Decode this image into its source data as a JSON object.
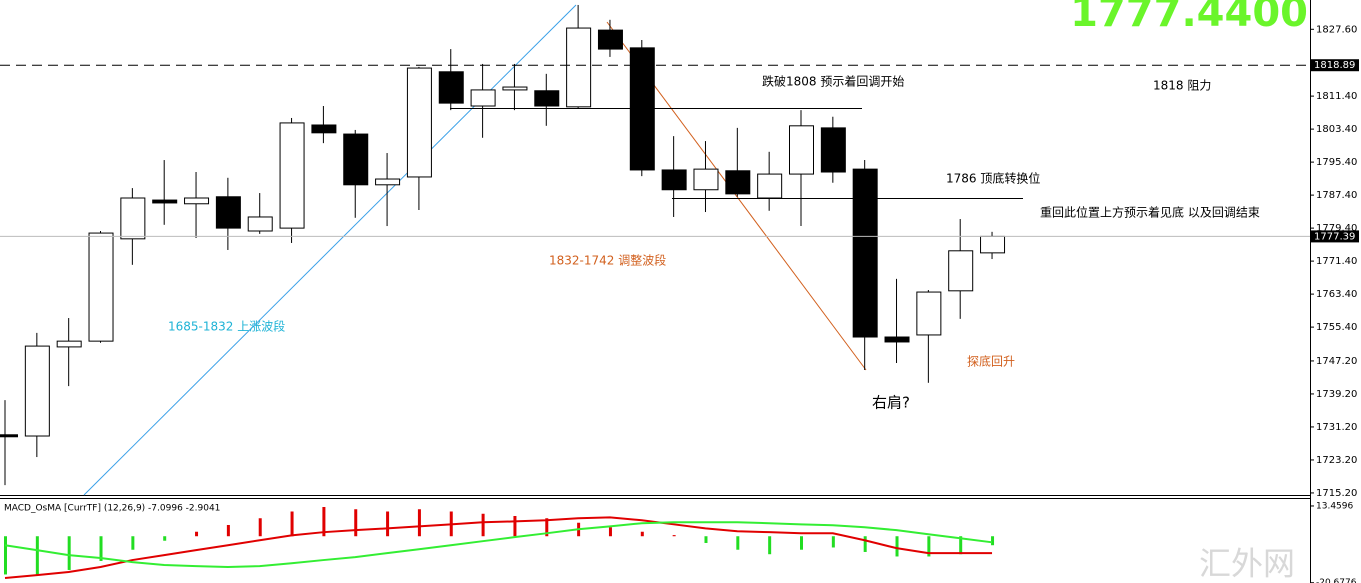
{
  "chart_data": [
    {
      "type": "candlestick",
      "categories": [
        null,
        null,
        null,
        null,
        null,
        null,
        null,
        null,
        null,
        null,
        null,
        null,
        null,
        null,
        null,
        null,
        null,
        null,
        null,
        null,
        null,
        null,
        null,
        null,
        null,
        null,
        null,
        null,
        null,
        null,
        null,
        null
      ],
      "open": [
        1729.3,
        1729.0,
        1750.6,
        1752.0,
        1776.8,
        1786.2,
        1785.3,
        1787.0,
        1778.7,
        1779.4,
        1804.4,
        1802.2,
        1789.9,
        1791.8,
        1817.3,
        1809.0,
        1812.9,
        1812.7,
        1808.8,
        1827.4,
        1823.1,
        1793.5,
        1788.7,
        1793.3,
        1786.7,
        1792.5,
        1803.7,
        1793.7,
        1753.0,
        1753.5,
        1764.2,
        1773.4
      ],
      "high": [
        1737.7,
        1754.0,
        1757.6,
        1778.7,
        1789.1,
        1795.9,
        1793.0,
        1791.6,
        1787.9,
        1806.1,
        1809.0,
        1803.2,
        1797.6,
        1818.5,
        1822.8,
        1819.2,
        1819.2,
        1816.8,
        1833.5,
        1829.9,
        1825.0,
        1801.7,
        1800.5,
        1803.7,
        1797.9,
        1808.0,
        1806.4,
        1795.9,
        1767.1,
        1764.4,
        1781.6,
        1778.5
      ],
      "low": [
        1717.1,
        1723.9,
        1741.1,
        1751.6,
        1770.5,
        1780.2,
        1777.0,
        1774.1,
        1778.0,
        1775.8,
        1800.0,
        1781.9,
        1779.9,
        1783.8,
        1808.0,
        1801.3,
        1808.0,
        1804.2,
        1808.5,
        1820.9,
        1792.0,
        1782.1,
        1783.3,
        1787.0,
        1783.6,
        1779.9,
        1790.4,
        1745.0,
        1746.7,
        1741.9,
        1757.4,
        1771.9
      ],
      "close": [
        1729.0,
        1750.8,
        1752.0,
        1778.2,
        1786.7,
        1785.5,
        1786.7,
        1779.4,
        1782.1,
        1804.9,
        1802.5,
        1789.9,
        1791.3,
        1818.2,
        1809.7,
        1812.9,
        1813.6,
        1809.0,
        1827.9,
        1822.8,
        1793.5,
        1788.7,
        1793.7,
        1787.7,
        1792.5,
        1804.2,
        1793.0,
        1753.0,
        1751.8,
        1763.9,
        1773.9,
        1777.39
      ],
      "up_color": "#ffffff",
      "down_color": "#000000",
      "ylim": [
        1714.7,
        1834.7
      ],
      "yticks": [
        {
          "value": 1827.6,
          "label": "1827.60"
        },
        {
          "value": 1811.4,
          "label": "1811.40"
        },
        {
          "value": 1803.4,
          "label": "1803.40"
        },
        {
          "value": 1795.4,
          "label": "1795.40"
        },
        {
          "value": 1787.4,
          "label": "1787.40"
        },
        {
          "value": 1779.4,
          "label": "1779.40"
        },
        {
          "value": 1771.4,
          "label": "1771.40"
        },
        {
          "value": 1763.4,
          "label": "1763.40"
        },
        {
          "value": 1755.4,
          "label": "1755.40"
        },
        {
          "value": 1747.2,
          "label": "1747.20"
        },
        {
          "value": 1739.2,
          "label": "1739.20"
        },
        {
          "value": 1731.2,
          "label": "1731.20"
        },
        {
          "value": 1723.2,
          "label": "1723.20"
        },
        {
          "value": 1715.2,
          "label": "1715.20"
        }
      ],
      "price_levels": [
        1818.89,
        1777.39
      ],
      "level_styles": [
        "dashed",
        "solid"
      ],
      "bid_display": "1777.4400",
      "annotations": [
        {
          "text": "跌破1808 预示着回调开始",
          "color": "#000000"
        },
        {
          "text": "1818 阻力",
          "color": "#000000"
        },
        {
          "text": "1786 顶底转换位",
          "color": "#000000"
        },
        {
          "text": "重回此位置上方预示着见底  以及回调结束",
          "color": "#000000"
        },
        {
          "text": "1832-1742  调整波段",
          "color": "#d2601e"
        },
        {
          "text": "1685-1832 上涨波段",
          "color": "#1fb3d6"
        },
        {
          "text": "探底回升",
          "color": "#d2601e"
        },
        {
          "text": "右肩?",
          "color": "#000000"
        }
      ]
    },
    {
      "type": "macd",
      "title": "MACD_OsMA [CurrTF] (12,26,9) -7.0996 -2.9041",
      "values": [
        -17,
        -17,
        -15,
        -11,
        -6,
        -2,
        2,
        5,
        8,
        11,
        13,
        12,
        11,
        12,
        11,
        10,
        9,
        8,
        6,
        4,
        2,
        0.5,
        -3,
        -6,
        -8,
        -6,
        -5,
        -7,
        -9,
        -9,
        -8,
        -4
      ],
      "up_color": "#e00000",
      "down_color": "#22dd22",
      "series": [
        {
          "color": "#e00000",
          "values": [
            -18.6,
            -17.3,
            -15.9,
            -13.7,
            -10.6,
            -8.4,
            -6.2,
            -4.0,
            -1.8,
            0.4,
            1.8,
            2.7,
            3.5,
            4.4,
            5.3,
            6.2,
            6.6,
            7.1,
            8.0,
            8.4,
            7.1,
            5.3,
            3.5,
            2.2,
            1.8,
            1.3,
            1.3,
            -1.8,
            -5.3,
            -7.5,
            -7.5,
            -7.5
          ]
        },
        {
          "color": "#33ee33",
          "values": [
            -4.0,
            -6.2,
            -8.4,
            -9.7,
            -11.5,
            -12.8,
            -13.3,
            -13.7,
            -13.3,
            -12.0,
            -10.6,
            -9.3,
            -7.5,
            -5.8,
            -4.0,
            -2.2,
            -0.4,
            1.3,
            3.1,
            4.4,
            5.8,
            6.2,
            6.2,
            6.2,
            5.8,
            5.3,
            4.9,
            4.0,
            2.7,
            0.9,
            -0.9,
            -2.7
          ]
        }
      ],
      "ylim": [
        -20.8,
        17.45
      ],
      "yticks": [
        13.4596,
        -20.6776
      ]
    }
  ]
}
